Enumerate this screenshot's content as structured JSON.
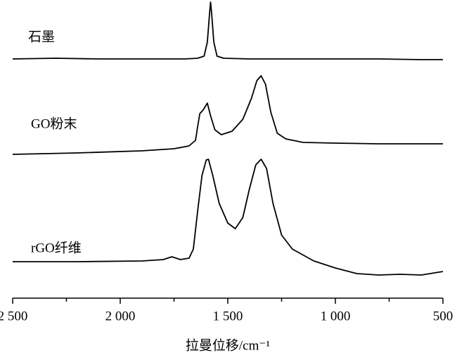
{
  "chart_data": {
    "type": "line",
    "xlabel": "拉曼位移/cm⁻¹",
    "xlim": [
      2500,
      500
    ],
    "xticks": [
      {
        "value": 2500,
        "label": "2 500"
      },
      {
        "value": 2000,
        "label": "2 000"
      },
      {
        "value": 1500,
        "label": "1 500"
      },
      {
        "value": 1000,
        "label": "1 000"
      },
      500
    ],
    "xminorticks": [
      2250,
      1750,
      1250,
      750
    ],
    "ylim": [
      0,
      425
    ],
    "series": [
      {
        "name": "石墨",
        "color": "#000000",
        "x": [
          2500,
          2300,
          2100,
          1900,
          1700,
          1640,
          1610,
          1595,
          1585,
          1580,
          1575,
          1565,
          1550,
          1520,
          1400,
          1200,
          1000,
          800,
          600,
          500
        ],
        "values": [
          341,
          342,
          341,
          341,
          341,
          342,
          345,
          365,
          405,
          422,
          405,
          365,
          345,
          342,
          341,
          341,
          341,
          341,
          340,
          340
        ]
      },
      {
        "name": "GO粉末",
        "color": "#000000",
        "x": [
          2500,
          2200,
          1900,
          1750,
          1680,
          1650,
          1640,
          1630,
          1615,
          1595,
          1580,
          1560,
          1530,
          1480,
          1430,
          1390,
          1365,
          1345,
          1325,
          1300,
          1270,
          1230,
          1150,
          1000,
          800,
          600,
          500
        ],
        "values": [
          205,
          207,
          210,
          213,
          217,
          225,
          245,
          263,
          268,
          278,
          260,
          240,
          233,
          238,
          255,
          285,
          310,
          317,
          305,
          265,
          235,
          227,
          222,
          221,
          220,
          220,
          220
        ]
      },
      {
        "name": "rGO纤维",
        "color": "#000000",
        "x": [
          2500,
          2200,
          1900,
          1800,
          1760,
          1720,
          1680,
          1660,
          1640,
          1620,
          1600,
          1590,
          1570,
          1540,
          1500,
          1465,
          1430,
          1400,
          1370,
          1345,
          1320,
          1290,
          1250,
          1200,
          1100,
          1000,
          900,
          800,
          700,
          600,
          500
        ],
        "values": [
          52,
          52,
          53,
          55,
          59,
          55,
          57,
          70,
          125,
          175,
          197,
          198,
          175,
          135,
          107,
          99,
          115,
          155,
          190,
          198,
          185,
          135,
          90,
          70,
          53,
          43,
          35,
          33,
          34,
          33,
          38
        ]
      }
    ]
  }
}
